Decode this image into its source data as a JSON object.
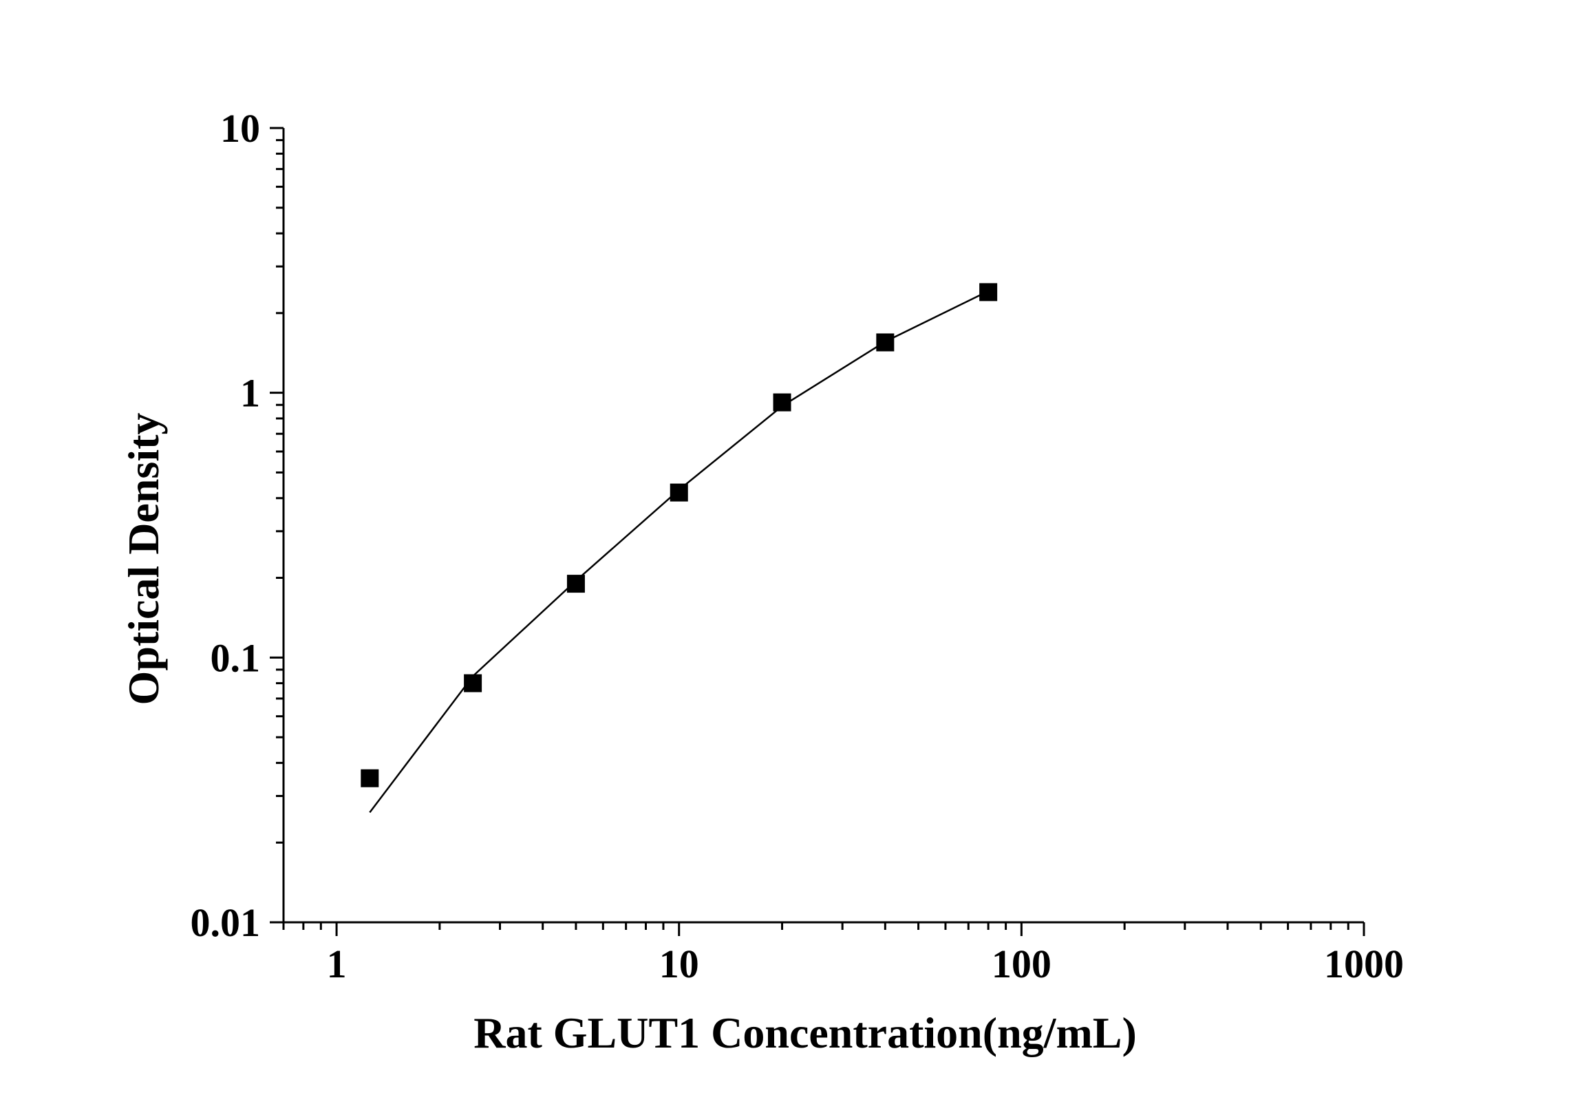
{
  "chart_data": {
    "type": "scatter",
    "title": "",
    "xlabel": "Rat GLUT1 Concentration(ng/mL)",
    "ylabel": "Optical Density",
    "x_scale": "log",
    "y_scale": "log",
    "xlim": [
      0.7,
      1000
    ],
    "ylim": [
      0.01,
      10
    ],
    "x_tick_values": [
      1,
      10,
      100,
      1000
    ],
    "x_tick_labels": [
      "1",
      "10",
      "100",
      "1000"
    ],
    "y_tick_values": [
      0.01,
      0.1,
      1,
      10
    ],
    "y_tick_labels": [
      "0.01",
      "0.1",
      "1",
      "10"
    ],
    "grid": false,
    "legend": "none",
    "colors": {
      "axis": "#000000",
      "marker": "#000000",
      "curve": "#000000"
    },
    "series": [
      {
        "style": "square-markers",
        "x": [
          1.25,
          2.5,
          5,
          10,
          20,
          40,
          80
        ],
        "y": [
          0.035,
          0.08,
          0.19,
          0.42,
          0.92,
          1.55,
          2.4
        ]
      },
      {
        "style": "fit-line",
        "x": [
          1.25,
          2.5,
          5,
          10,
          20,
          40,
          80
        ],
        "y": [
          0.026,
          0.085,
          0.195,
          0.43,
          0.89,
          1.56,
          2.42
        ]
      }
    ]
  }
}
